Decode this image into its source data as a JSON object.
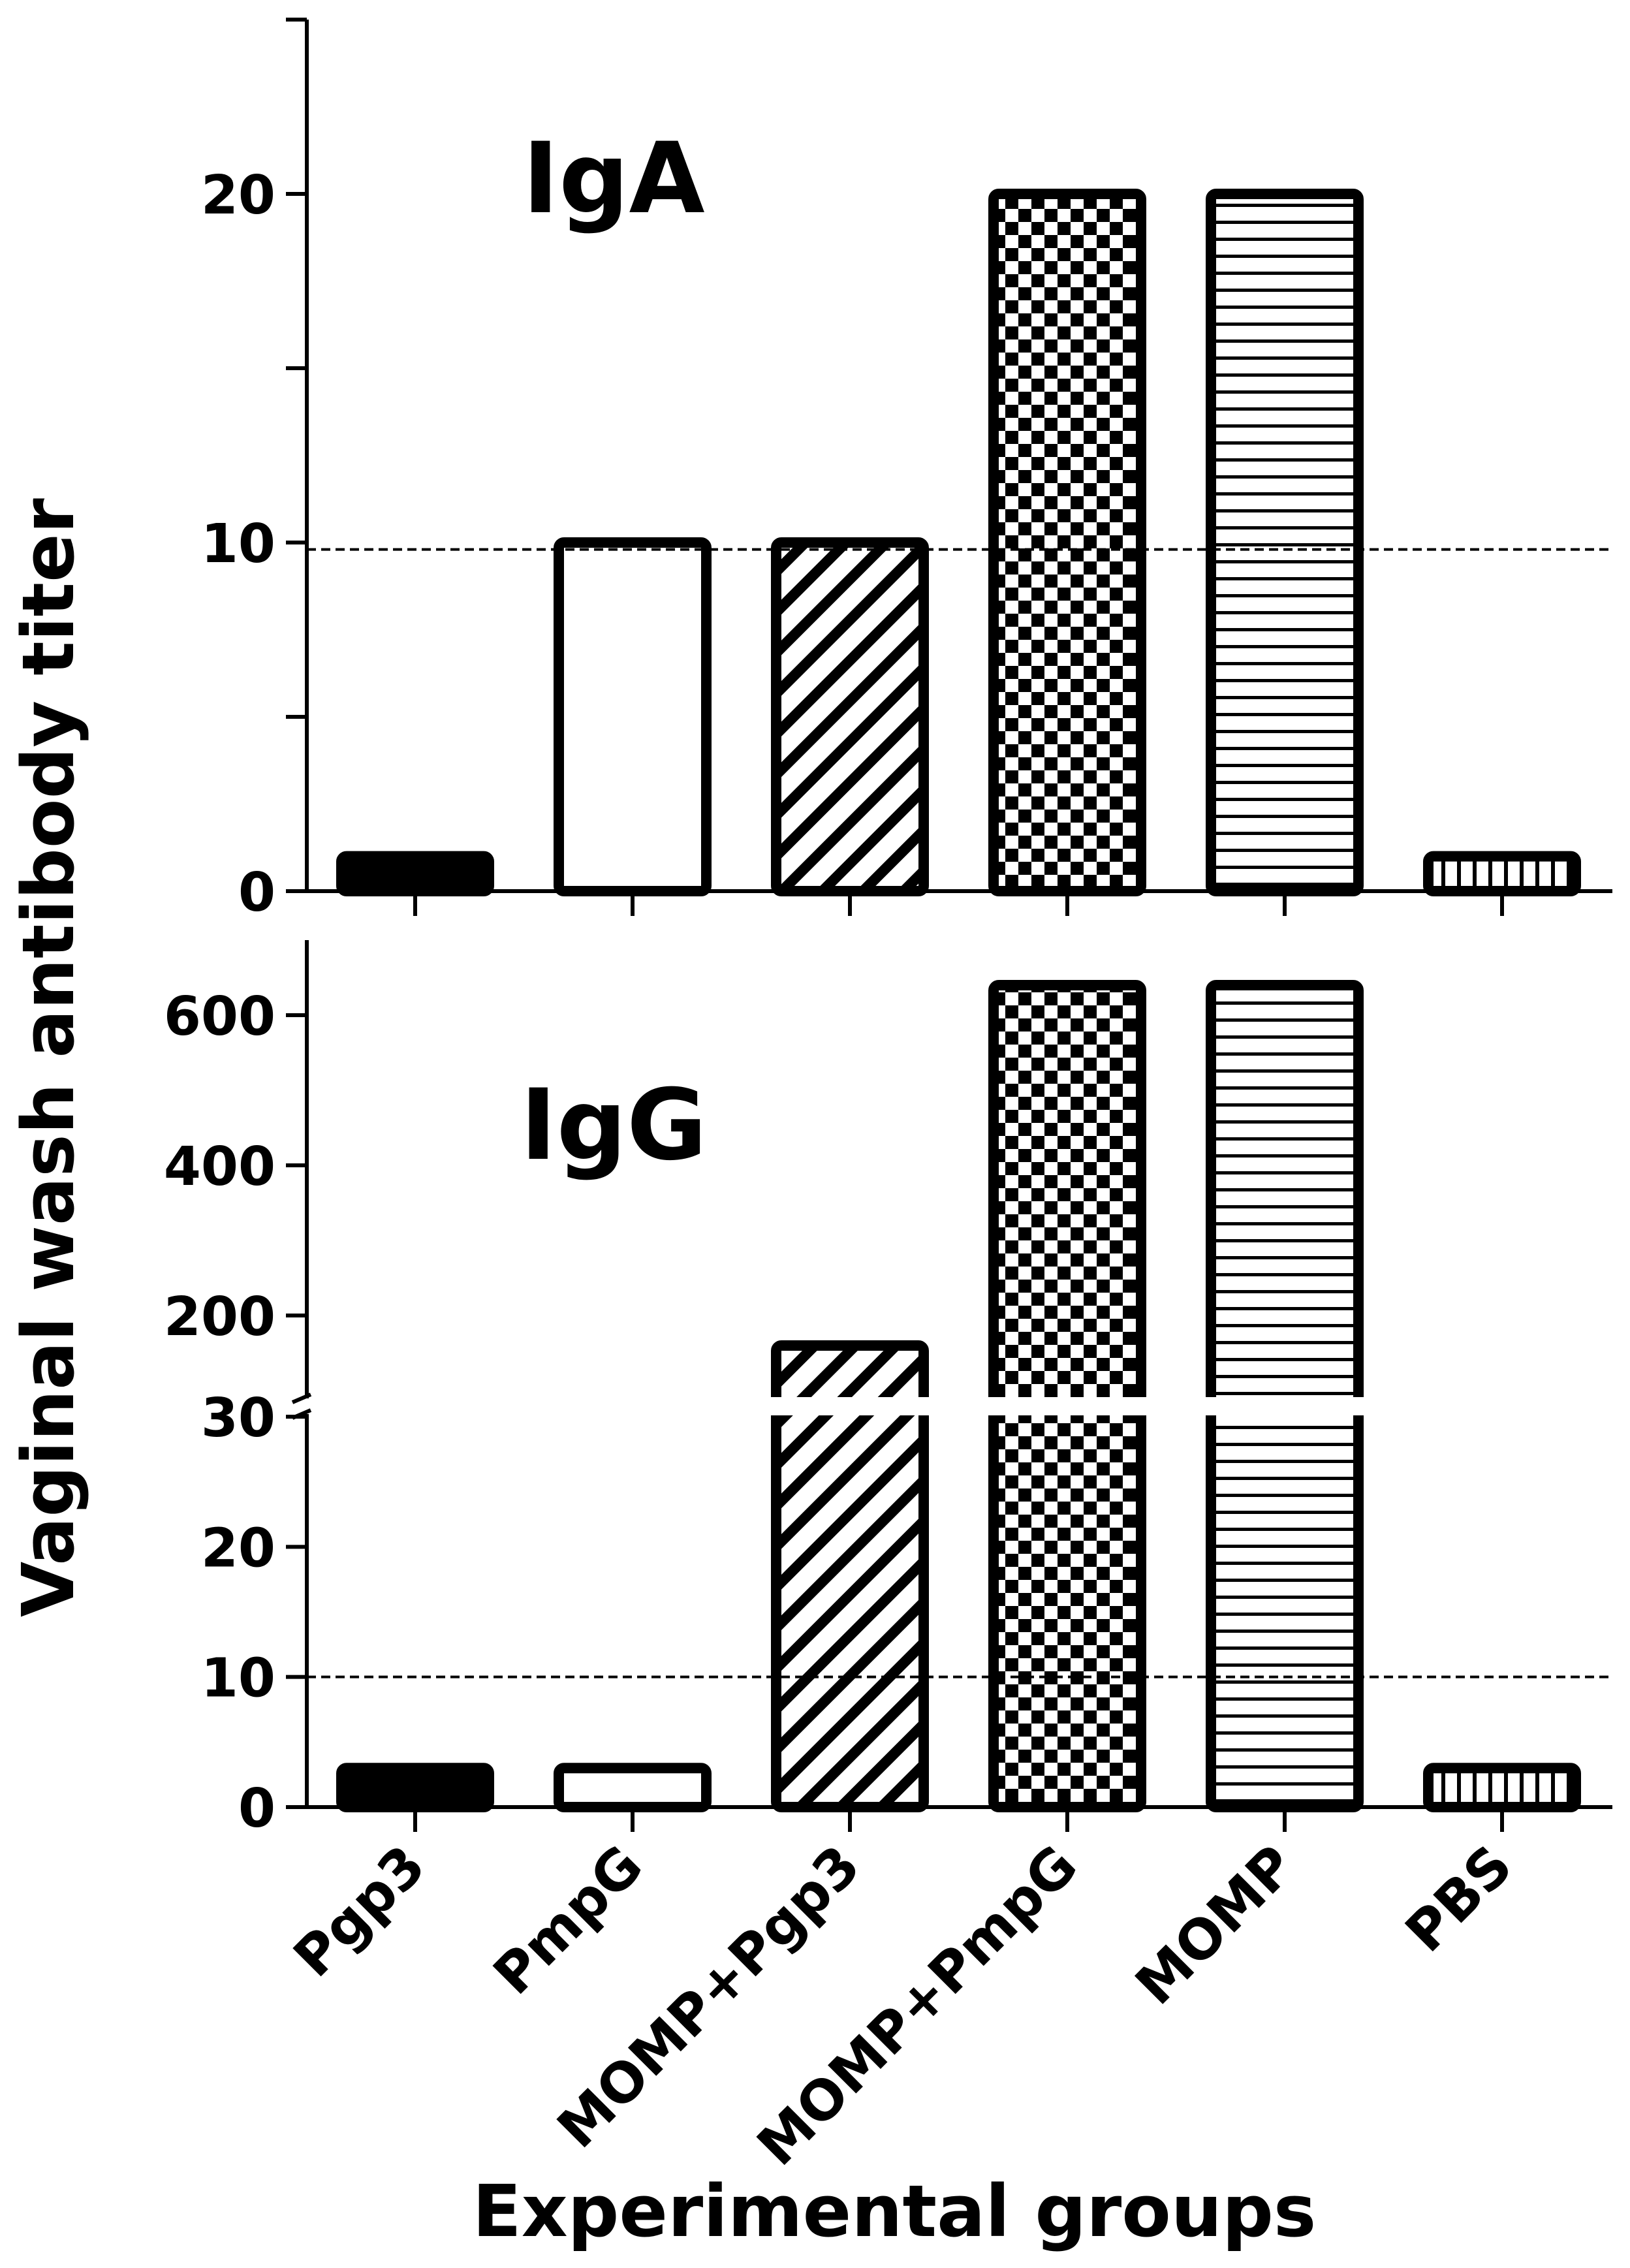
{
  "chart_data": {
    "type": "bar",
    "ylabel": "Vaginal wash antibody titer",
    "xlabel": "Experimental groups",
    "categories": [
      "Pgp3",
      "PmpG",
      "MOMP+Pgp3",
      "MOMP+PmpG",
      "MOMP",
      "PBS"
    ],
    "patterns": [
      "solid",
      "empty",
      "diagonal",
      "checker",
      "horizontal",
      "vertical"
    ],
    "panels": [
      {
        "title": "IgA",
        "ylim": [
          0,
          25
        ],
        "yticks": [
          0,
          10,
          20
        ],
        "minor_ticks": [
          5,
          15,
          25
        ],
        "values": [
          1,
          10,
          10,
          20,
          20,
          1
        ],
        "threshold": 9.8
      },
      {
        "title": "IgG",
        "broken_axis": true,
        "lower_ylim": [
          0,
          30
        ],
        "lower_yticks": [
          0,
          10,
          20,
          30
        ],
        "upper_ylim": [
          100,
          700
        ],
        "upper_yticks": [
          200,
          400,
          600
        ],
        "values": [
          3,
          3,
          160,
          640,
          640,
          3
        ],
        "threshold": 10
      }
    ]
  }
}
